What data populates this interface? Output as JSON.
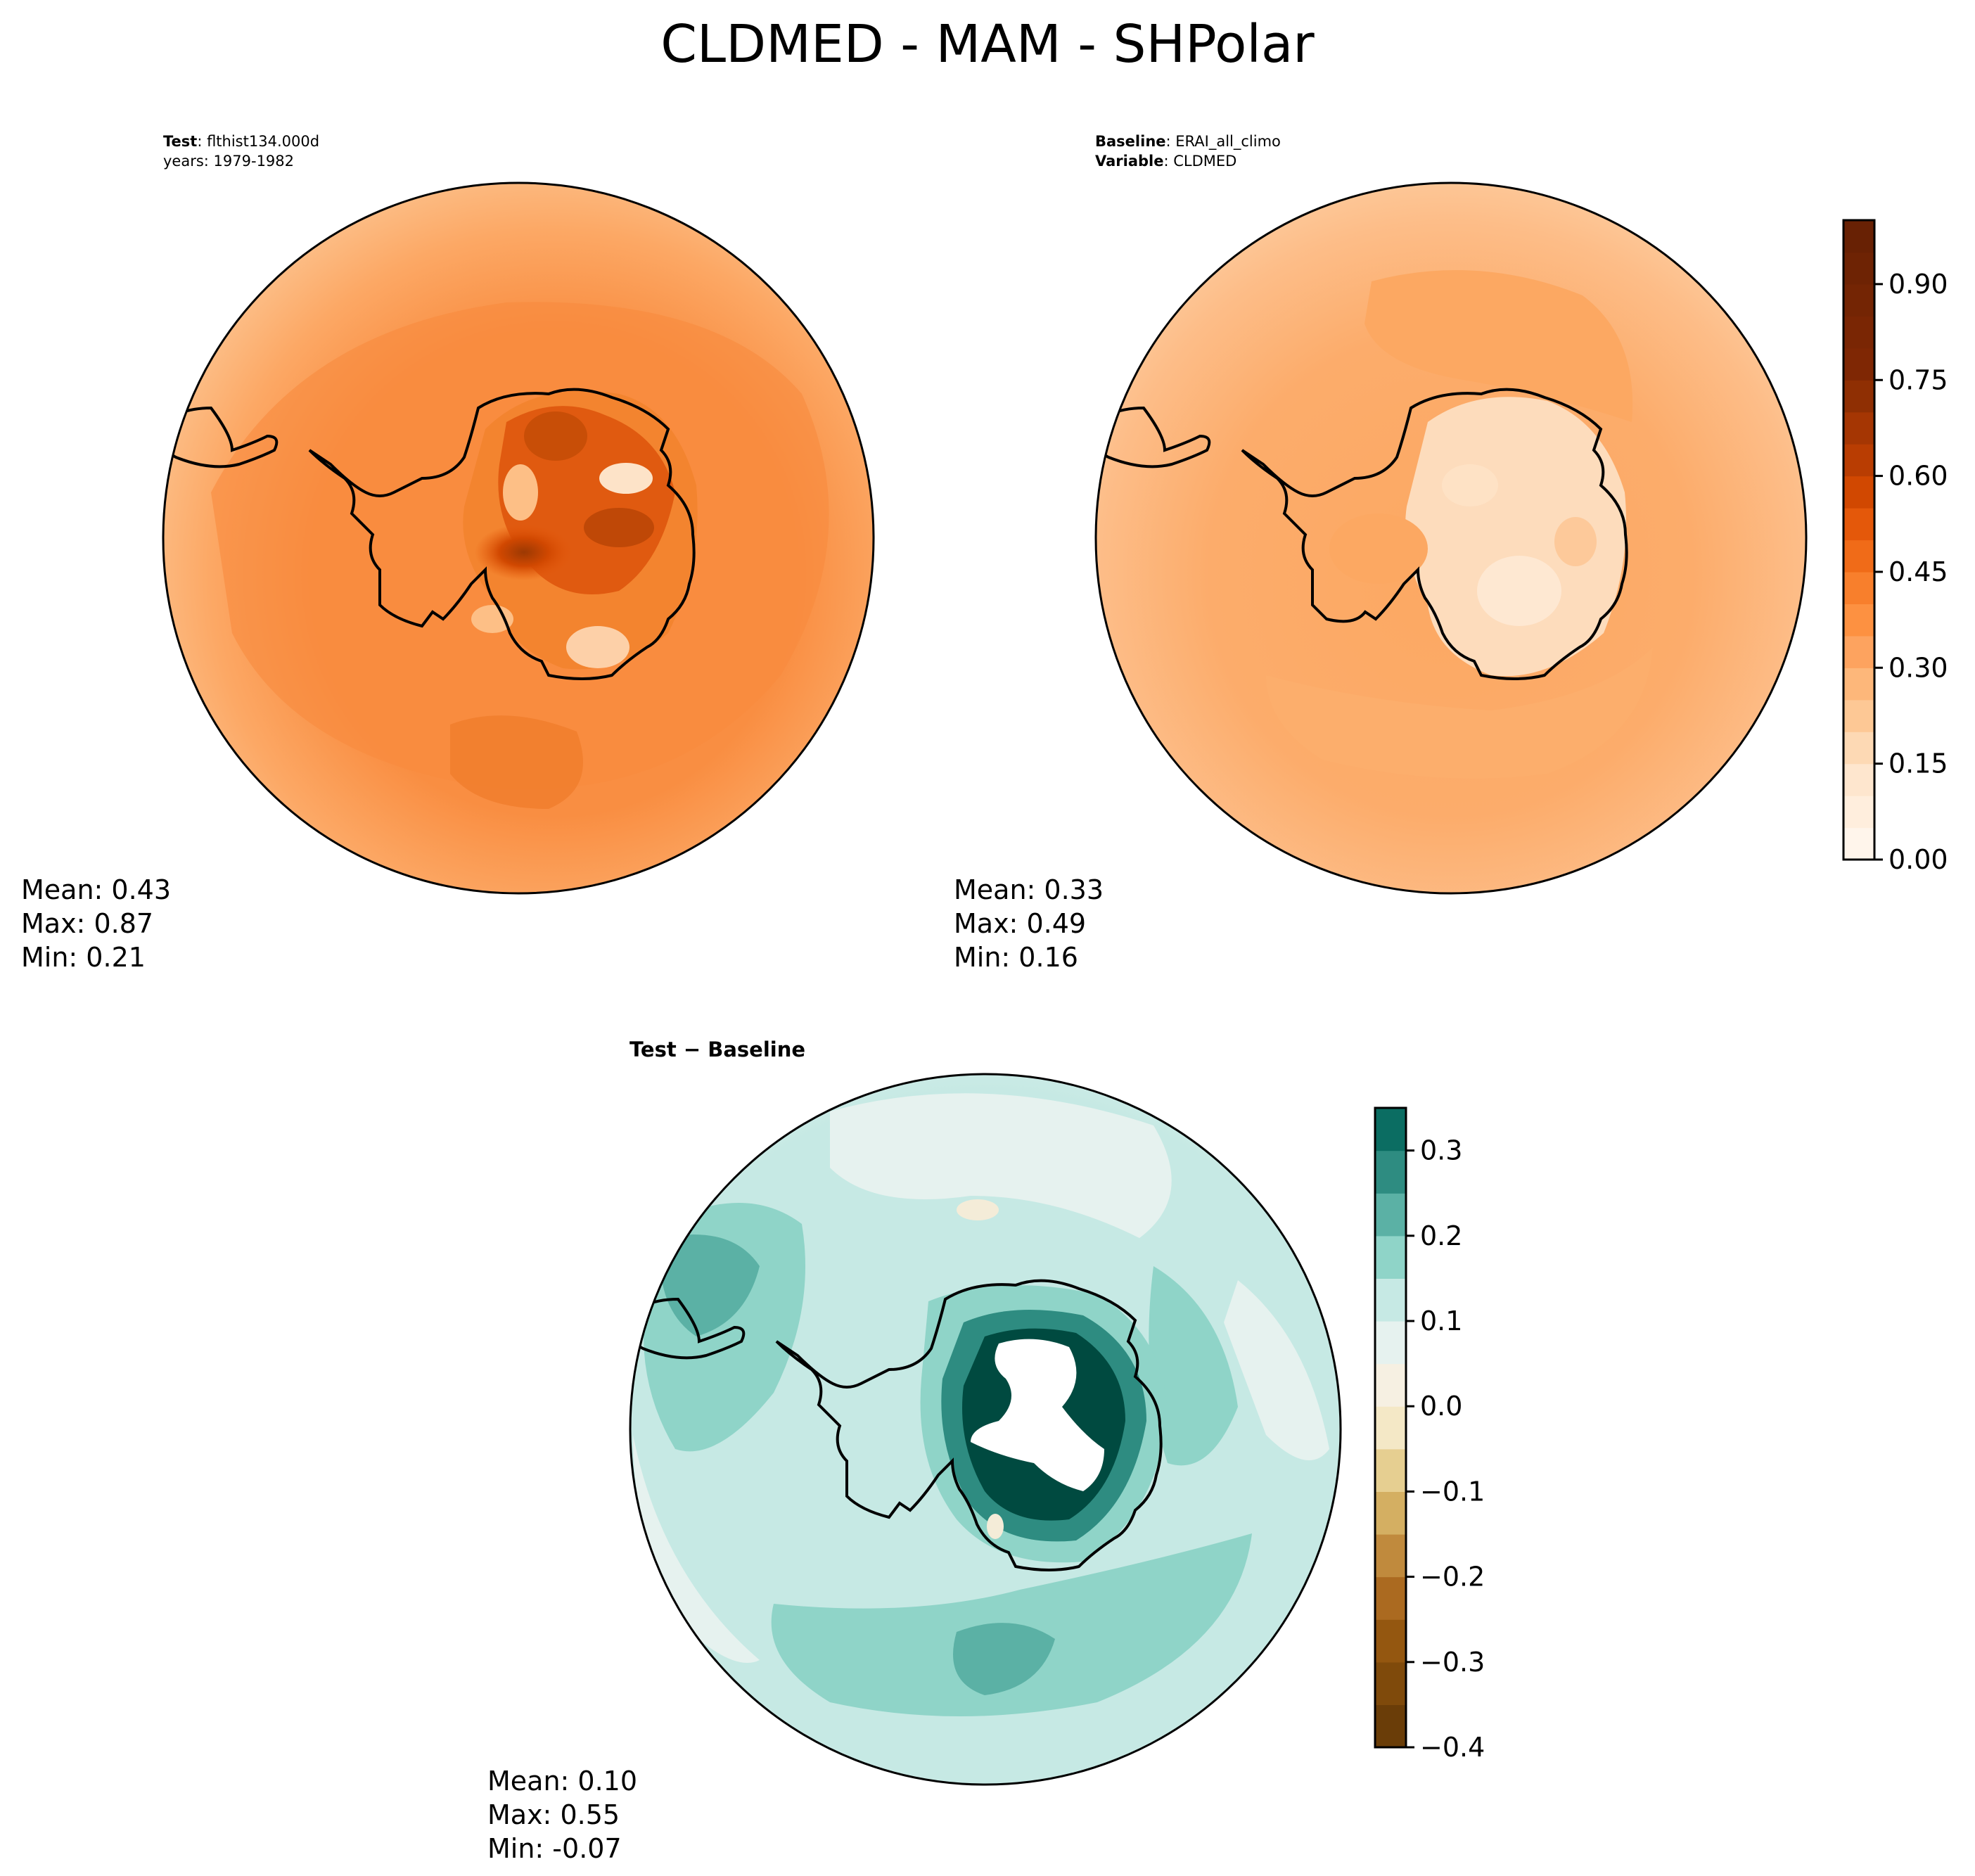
{
  "figure": {
    "title": "CLDMED - MAM - SHPolar"
  },
  "panels": {
    "test": {
      "label_bold": "Test",
      "label_value": ": flthist134.000d",
      "label_line2": "years: 1979-1982",
      "mean_label": "Mean:  0.43",
      "max_label": "Max:  0.87",
      "min_label": "Min:  0.21"
    },
    "baseline": {
      "label_bold": "Baseline",
      "label_value": ": ERAI_all_climo",
      "label2_bold": "Variable",
      "label2_value": ": CLDMED",
      "mean_label": "Mean:  0.33",
      "max_label": "Max:  0.49",
      "min_label": "Min:  0.16"
    },
    "difference": {
      "title": "Test − Baseline",
      "mean_label": "Mean:  0.10",
      "max_label": "Max:  0.55",
      "min_label": "Min: -0.07"
    }
  },
  "chart_data": [
    {
      "type": "heatmap",
      "projection": "south-polar-stereographic",
      "panel": "test",
      "variable": "CLDMED",
      "season": "MAM",
      "case": "flthist134.000d",
      "years": "1979-1982",
      "stats": {
        "mean": 0.43,
        "max": 0.87,
        "min": 0.21
      },
      "colormap": "Oranges",
      "shared_colorbar": {
        "range": [
          0.0,
          1.0
        ],
        "levels": [
          0.0,
          0.05,
          0.1,
          0.15,
          0.2,
          0.25,
          0.3,
          0.35,
          0.4,
          0.45,
          0.5,
          0.55,
          0.6,
          0.65,
          0.7,
          0.75,
          0.8,
          0.85,
          0.9,
          0.95,
          1.0
        ],
        "ticks": [
          0.0,
          0.15,
          0.3,
          0.45,
          0.6,
          0.75,
          0.9
        ],
        "tick_labels": [
          "0.00",
          "0.15",
          "0.30",
          "0.45",
          "0.60",
          "0.75",
          "0.90"
        ],
        "colors": [
          "#fff5eb",
          "#ffeedd",
          "#fee6ce",
          "#fdd9b4",
          "#fdc895",
          "#fdb77a",
          "#fda35f",
          "#fd9141",
          "#f87f2c",
          "#f06b18",
          "#e4580a",
          "#d14801",
          "#b93d02",
          "#a53603",
          "#8f2f03",
          "#7f2704",
          "#7a2604",
          "#742504",
          "#6e2304",
          "#682104"
        ]
      },
      "regions": {
        "background": "#fdbf86",
        "mid_ring": "#fca865",
        "inner": "#f98e42",
        "continent_high": "#e05a10",
        "continent_peak": "#b84506",
        "continent_light": "#fde3c8"
      }
    },
    {
      "type": "heatmap",
      "projection": "south-polar-stereographic",
      "panel": "baseline",
      "variable": "CLDMED",
      "season": "MAM",
      "case": "ERAI_all_climo",
      "stats": {
        "mean": 0.33,
        "max": 0.49,
        "min": 0.16
      },
      "colormap": "Oranges",
      "regions": {
        "background": "#fdcb9c",
        "mid_ring": "#fdb47a",
        "inner": "#fca862",
        "continent": "#fddcbc",
        "continent_light": "#fee8d2"
      }
    },
    {
      "type": "heatmap",
      "projection": "south-polar-stereographic",
      "panel": "difference",
      "title": "Test − Baseline",
      "stats": {
        "mean": 0.1,
        "max": 0.55,
        "min": -0.07
      },
      "colormap": "BrBG",
      "colorbar": {
        "range": [
          -0.4,
          0.35
        ],
        "levels": [
          -0.4,
          -0.35,
          -0.3,
          -0.25,
          -0.2,
          -0.15,
          -0.1,
          -0.05,
          0.0,
          0.05,
          0.1,
          0.15,
          0.2,
          0.25,
          0.3,
          0.35
        ],
        "ticks": [
          -0.4,
          -0.3,
          -0.2,
          -0.1,
          0.0,
          0.1,
          0.2,
          0.3
        ],
        "tick_labels": [
          "−0.4",
          "−0.3",
          "−0.2",
          "−0.1",
          "0.0",
          "0.1",
          "0.2",
          "0.3"
        ],
        "colors": [
          "#6a3d08",
          "#7f4a0b",
          "#945710",
          "#ab6a20",
          "#c08a3d",
          "#d4af62",
          "#e6cf91",
          "#f4e8c6",
          "#f6f0e2",
          "#e6f2ef",
          "#c6e9e4",
          "#8fd4c8",
          "#5bb1a5",
          "#2e8c81",
          "#0b6d62",
          "#004a40"
        ]
      },
      "regions": {
        "background": "#c6e9e4",
        "light": "#e6f2ef",
        "mid": "#8fd4c8",
        "strong": "#5bb1a5",
        "darker": "#2e8c81",
        "darkest": "#004a40",
        "above_max": "#ffffff",
        "negative_patch": "#f4ecd8"
      }
    }
  ]
}
